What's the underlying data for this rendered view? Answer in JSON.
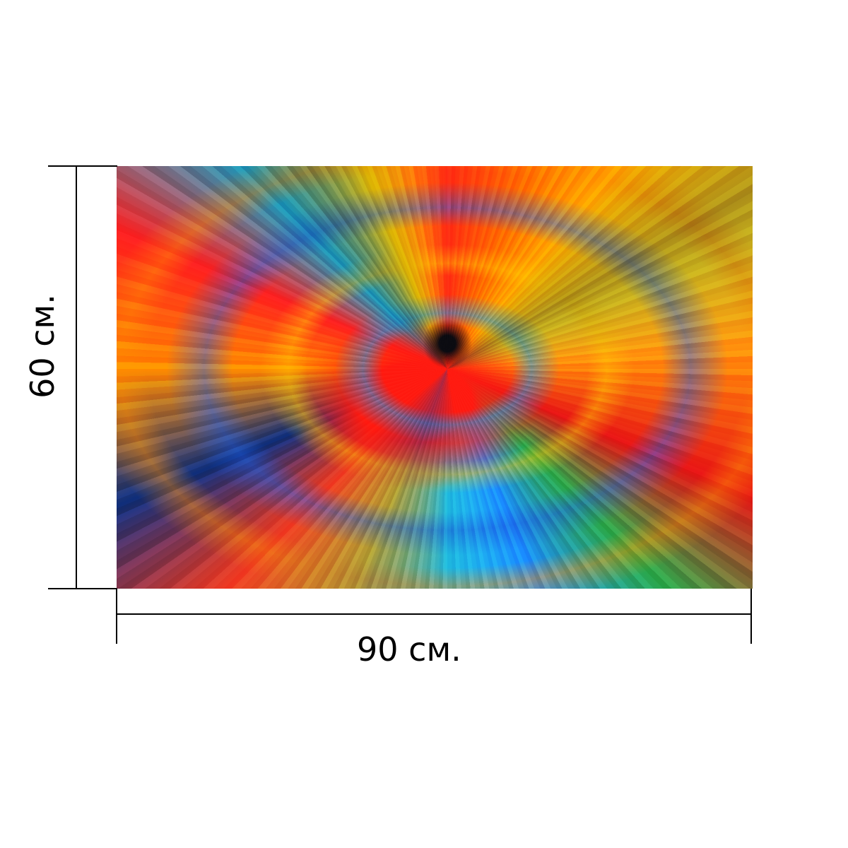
{
  "artwork": {
    "colors": [
      "#ff2a12",
      "#ff6a00",
      "#ffb300",
      "#ffe11a",
      "#2aa84a",
      "#1a8cff",
      "#21c7e6",
      "#0f2e7a",
      "#0b0b10"
    ]
  },
  "dimensions": {
    "width_label": "90 см.",
    "height_label": "60 см."
  }
}
